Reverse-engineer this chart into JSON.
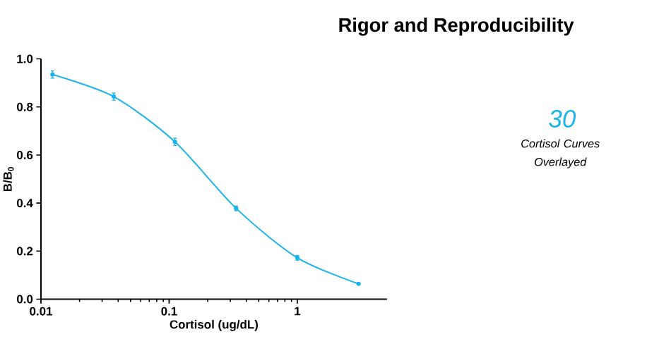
{
  "chart_data": {
    "type": "line",
    "title": "Rigor and Reproducibility",
    "xlabel": "Cortisol (ug/dL)",
    "ylabel": "B/B$_{0}$",
    "x": [
      0.0123,
      0.037,
      0.111,
      0.333,
      1,
      3
    ],
    "series": [
      {
        "color": "#1ab4ea",
        "values": [
          0.935,
          0.843,
          0.655,
          0.378,
          0.172,
          0.064
        ],
        "errors": [
          0.015,
          0.015,
          0.015,
          0.01,
          0.01,
          null
        ]
      }
    ],
    "log": "x",
    "marker": "circle",
    "line_style": "solid",
    "grid": false,
    "xlim": [
      0.01,
      5
    ],
    "xticks": [
      0.01,
      0.1,
      1
    ],
    "ylim": [
      0,
      1
    ],
    "yticks": [
      {
        "value": 0,
        "label": "0.0"
      },
      0.2,
      0.4,
      0.6,
      0.8,
      {
        "value": 1,
        "label": "1.0"
      }
    ],
    "annotations": [
      "30",
      "Cortisol Curves Overlayed"
    ]
  }
}
